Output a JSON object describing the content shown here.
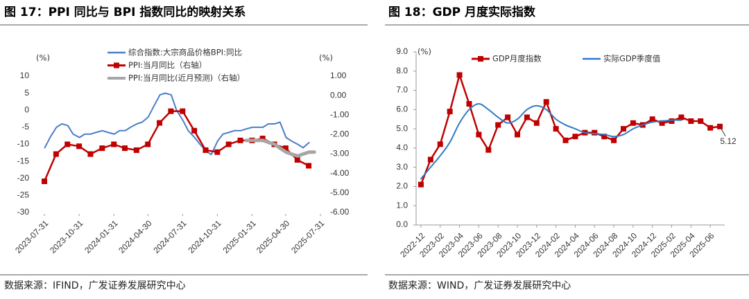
{
  "chart_data": [
    {
      "type": "line",
      "title": "图 17：PPI 同比与 BPI 指数同比的映射关系",
      "source": "数据来源：IFIND，广发证券发展研究中心",
      "ylabel": "(%)",
      "y2label": "(%)",
      "xlim": [
        "2023-07-31",
        "2025-07-31"
      ],
      "xticks": [
        "2023-07-31",
        "2023-10-31",
        "2024-01-31",
        "2024-04-30",
        "2024-07-31",
        "2024-10-31",
        "2025-01-31",
        "2025-04-30",
        "2025-07-31"
      ],
      "ylim": [
        -30,
        10
      ],
      "yticks": [
        -30,
        -25,
        -20,
        -15,
        -10,
        -5,
        0,
        5,
        10
      ],
      "y2lim": [
        -6,
        1
      ],
      "y2ticks": [
        {
          "value": -6,
          "label": "-6.00"
        },
        {
          "value": -5,
          "label": "-5.00"
        },
        {
          "value": -4,
          "label": "-4.00"
        },
        {
          "value": -3,
          "label": "-3.00"
        },
        {
          "value": -2,
          "label": "-2.00"
        },
        {
          "value": -1,
          "label": "-1.00"
        },
        {
          "value": 0,
          "label": "0.00"
        },
        {
          "value": 1,
          "label": "1.00"
        }
      ],
      "legend": "upper left",
      "series": [
        {
          "name": "综合指数:大宗商品价格BPI:同比",
          "color": "#4a7cc9",
          "linewidth": 2,
          "x": [
            "2023-08-01",
            "2023-08-15",
            "2023-09-01",
            "2023-09-15",
            "2023-10-01",
            "2023-10-15",
            "2023-11-01",
            "2023-11-15",
            "2023-12-01",
            "2023-12-15",
            "2024-01-01",
            "2024-01-15",
            "2024-02-01",
            "2024-02-15",
            "2024-03-01",
            "2024-03-15",
            "2024-04-01",
            "2024-04-15",
            "2024-05-01",
            "2024-05-15",
            "2024-06-01",
            "2024-06-15",
            "2024-07-01",
            "2024-07-15",
            "2024-08-01",
            "2024-08-15",
            "2024-09-01",
            "2024-09-15",
            "2024-10-01",
            "2024-10-15",
            "2024-11-01",
            "2024-11-15",
            "2024-12-01",
            "2024-12-15",
            "2025-01-01",
            "2025-01-15",
            "2025-02-01",
            "2025-02-15",
            "2025-03-01",
            "2025-03-15",
            "2025-04-01",
            "2025-04-15",
            "2025-05-01",
            "2025-05-15",
            "2025-06-01",
            "2025-06-15",
            "2025-07-01"
          ],
          "values": [
            -11,
            -8,
            -5,
            -4,
            -4.5,
            -7,
            -8,
            -7,
            -7,
            -6.5,
            -6,
            -6.5,
            -7,
            -6,
            -6,
            -5,
            -4,
            -3.5,
            -2,
            1,
            4.5,
            5,
            4.5,
            0,
            -3,
            -6,
            -8,
            -10,
            -12,
            -13,
            -9,
            -7,
            -6.5,
            -6,
            -6,
            -5.5,
            -5,
            -5,
            -5,
            -4,
            -4,
            -3.5,
            -8,
            -9,
            -10,
            -11,
            -9.5
          ]
        },
        {
          "name": "PPI:当月同比（右轴）",
          "color": "#c00000",
          "linewidth": 2.5,
          "marker": "square",
          "axis": "y2",
          "x": [
            "2023-07-31",
            "2023-08-31",
            "2023-09-30",
            "2023-10-31",
            "2023-11-30",
            "2023-12-31",
            "2024-01-31",
            "2024-02-29",
            "2024-03-31",
            "2024-04-30",
            "2024-05-31",
            "2024-06-30",
            "2024-07-31",
            "2024-08-31",
            "2024-09-30",
            "2024-10-31",
            "2024-11-30",
            "2024-12-31",
            "2025-01-31",
            "2025-02-28",
            "2025-03-31",
            "2025-04-30",
            "2025-05-31",
            "2025-06-30"
          ],
          "values": [
            -4.4,
            -3.0,
            -2.5,
            -2.6,
            -3.0,
            -2.7,
            -2.5,
            -2.7,
            -2.8,
            -2.5,
            -1.4,
            -0.8,
            -0.8,
            -1.8,
            -2.8,
            -2.9,
            -2.5,
            -2.3,
            -2.3,
            -2.2,
            -2.5,
            -2.7,
            -3.3,
            -3.6
          ]
        },
        {
          "name": "PPI:当月同比(近月预测)（右轴）",
          "color": "#a6a6a6",
          "linewidth": 5,
          "axis": "y2",
          "x": [
            "2025-01-15",
            "2025-02-01",
            "2025-02-15",
            "2025-03-01",
            "2025-03-15",
            "2025-04-01",
            "2025-04-15",
            "2025-05-01",
            "2025-05-15",
            "2025-06-01",
            "2025-06-15",
            "2025-07-01",
            "2025-07-15"
          ],
          "values": [
            -2.3,
            -2.3,
            -2.3,
            -2.3,
            -2.4,
            -2.5,
            -2.7,
            -2.9,
            -3.0,
            -3.1,
            -3.0,
            -2.9,
            -2.9
          ]
        }
      ]
    },
    {
      "type": "line",
      "title": "图 18：GDP 月度实际指数",
      "source": "数据来源：WIND，广发证券发展研究中心",
      "ylabel": "(%)",
      "categories": [
        "2022-12",
        null,
        "2023-02",
        null,
        "2023-04",
        null,
        "2023-06",
        null,
        "2023-08",
        null,
        "2023-10",
        null,
        "2023-12",
        null,
        "2024-02",
        null,
        "2024-04",
        null,
        "2024-06",
        null,
        "2024-08",
        null,
        "2024-10",
        null,
        "2024-12",
        null,
        "2025-02",
        null,
        "2025-04",
        null,
        "2025-06",
        null
      ],
      "ylim": [
        0,
        9
      ],
      "yticks": [
        {
          "value": 0,
          "label": "0.0"
        },
        {
          "value": 1,
          "label": "1.0"
        },
        {
          "value": 2,
          "label": "2.0"
        },
        {
          "value": 3,
          "label": "3.0"
        },
        {
          "value": 4,
          "label": "4.0"
        },
        {
          "value": 5,
          "label": "5.0"
        },
        {
          "value": 6,
          "label": "6.0"
        },
        {
          "value": 7,
          "label": "7.0"
        },
        {
          "value": 8,
          "label": "8.0"
        },
        {
          "value": 9,
          "label": "9.0"
        }
      ],
      "legend": "top",
      "series": [
        {
          "name": "GDP月度指数",
          "color": "#c00000",
          "linewidth": 2.5,
          "marker": "square",
          "label_last": true,
          "values": [
            2.1,
            3.4,
            4.2,
            5.9,
            7.8,
            6.3,
            4.7,
            3.9,
            5.2,
            5.6,
            4.7,
            5.6,
            5.3,
            6.4,
            5.0,
            4.4,
            4.6,
            4.8,
            4.8,
            4.6,
            4.4,
            5.0,
            5.3,
            5.2,
            5.5,
            5.3,
            5.4,
            5.6,
            5.4,
            5.4,
            5.05,
            5.12
          ]
        },
        {
          "name": "实际GDP季度值",
          "color": "#2e7bc4",
          "linewidth": 2,
          "smooth": true,
          "values": [
            2.4,
            3.0,
            3.6,
            4.3,
            5.3,
            6.0,
            6.3,
            6.0,
            5.6,
            5.3,
            5.5,
            6.0,
            6.2,
            6.0,
            5.5,
            5.2,
            5.0,
            4.8,
            4.75,
            4.7,
            4.6,
            4.7,
            5.0,
            5.2,
            5.35,
            5.4,
            5.45,
            5.45,
            null,
            null,
            null,
            null
          ]
        }
      ]
    }
  ]
}
